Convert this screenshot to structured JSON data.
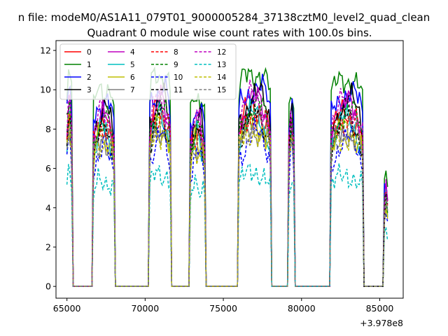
{
  "chart_data": {
    "type": "line",
    "suptitle": "n file: modeM0/AS1A11_079T01_9000005284_37138cztM0_level2_quad_clean",
    "title": "Quadrant 0 module wise count rates with 100.0s bins.",
    "xlabel": "",
    "ylabel": "",
    "x_offset_label": "+3.978e8",
    "xlim": [
      64300,
      86500
    ],
    "ylim": [
      -0.6,
      12.5
    ],
    "xticks": [
      65000,
      70000,
      75000,
      80000,
      85000
    ],
    "yticks": [
      0,
      2,
      4,
      6,
      8,
      10,
      12
    ],
    "grid": false,
    "legend_position": "upper-left",
    "legend_columns": 4,
    "series": [
      {
        "name": "0",
        "color": "#ff0000",
        "style": "solid",
        "level": 8.3
      },
      {
        "name": "1",
        "color": "#008000",
        "style": "solid",
        "level": 10.2
      },
      {
        "name": "2",
        "color": "#0000ff",
        "style": "solid",
        "level": 9.4
      },
      {
        "name": "3",
        "color": "#000000",
        "style": "solid",
        "level": 8.9
      },
      {
        "name": "4",
        "color": "#bf00bf",
        "style": "solid",
        "level": 8.6
      },
      {
        "name": "5",
        "color": "#00bfbf",
        "style": "solid",
        "level": 7.9
      },
      {
        "name": "6",
        "color": "#bfbf00",
        "style": "solid",
        "level": 7.6
      },
      {
        "name": "7",
        "color": "#808080",
        "style": "solid",
        "level": 7.4
      },
      {
        "name": "8",
        "color": "#ff0000",
        "style": "dashed",
        "level": 8.1
      },
      {
        "name": "9",
        "color": "#008000",
        "style": "dashed",
        "level": 8.4
      },
      {
        "name": "10",
        "color": "#0000ff",
        "style": "dashed",
        "level": 7.0
      },
      {
        "name": "11",
        "color": "#000000",
        "style": "dashed",
        "level": 8.0
      },
      {
        "name": "12",
        "color": "#bf00bf",
        "style": "dashed",
        "level": 8.8
      },
      {
        "name": "13",
        "color": "#00bfbf",
        "style": "dashed",
        "level": 5.4
      },
      {
        "name": "14",
        "color": "#bfbf00",
        "style": "dashed",
        "level": 7.3
      },
      {
        "name": "15",
        "color": "#808080",
        "style": "dashed",
        "level": 7.6
      }
    ],
    "segments": [
      {
        "x_start": 65000,
        "x_end": 65300,
        "scale": 1.05
      },
      {
        "x_start": 66700,
        "x_end": 68000,
        "scale": 0.97
      },
      {
        "x_start": 70300,
        "x_end": 71600,
        "scale": 1.04
      },
      {
        "x_start": 72900,
        "x_end": 73800,
        "scale": 0.93
      },
      {
        "x_start": 76000,
        "x_end": 78000,
        "scale": 1.05
      },
      {
        "x_start": 79200,
        "x_end": 79500,
        "scale": 0.96
      },
      {
        "x_start": 81900,
        "x_end": 83900,
        "scale": 1.02
      },
      {
        "x_start": 85300,
        "x_end": 85500,
        "scale": 0.55
      }
    ]
  }
}
